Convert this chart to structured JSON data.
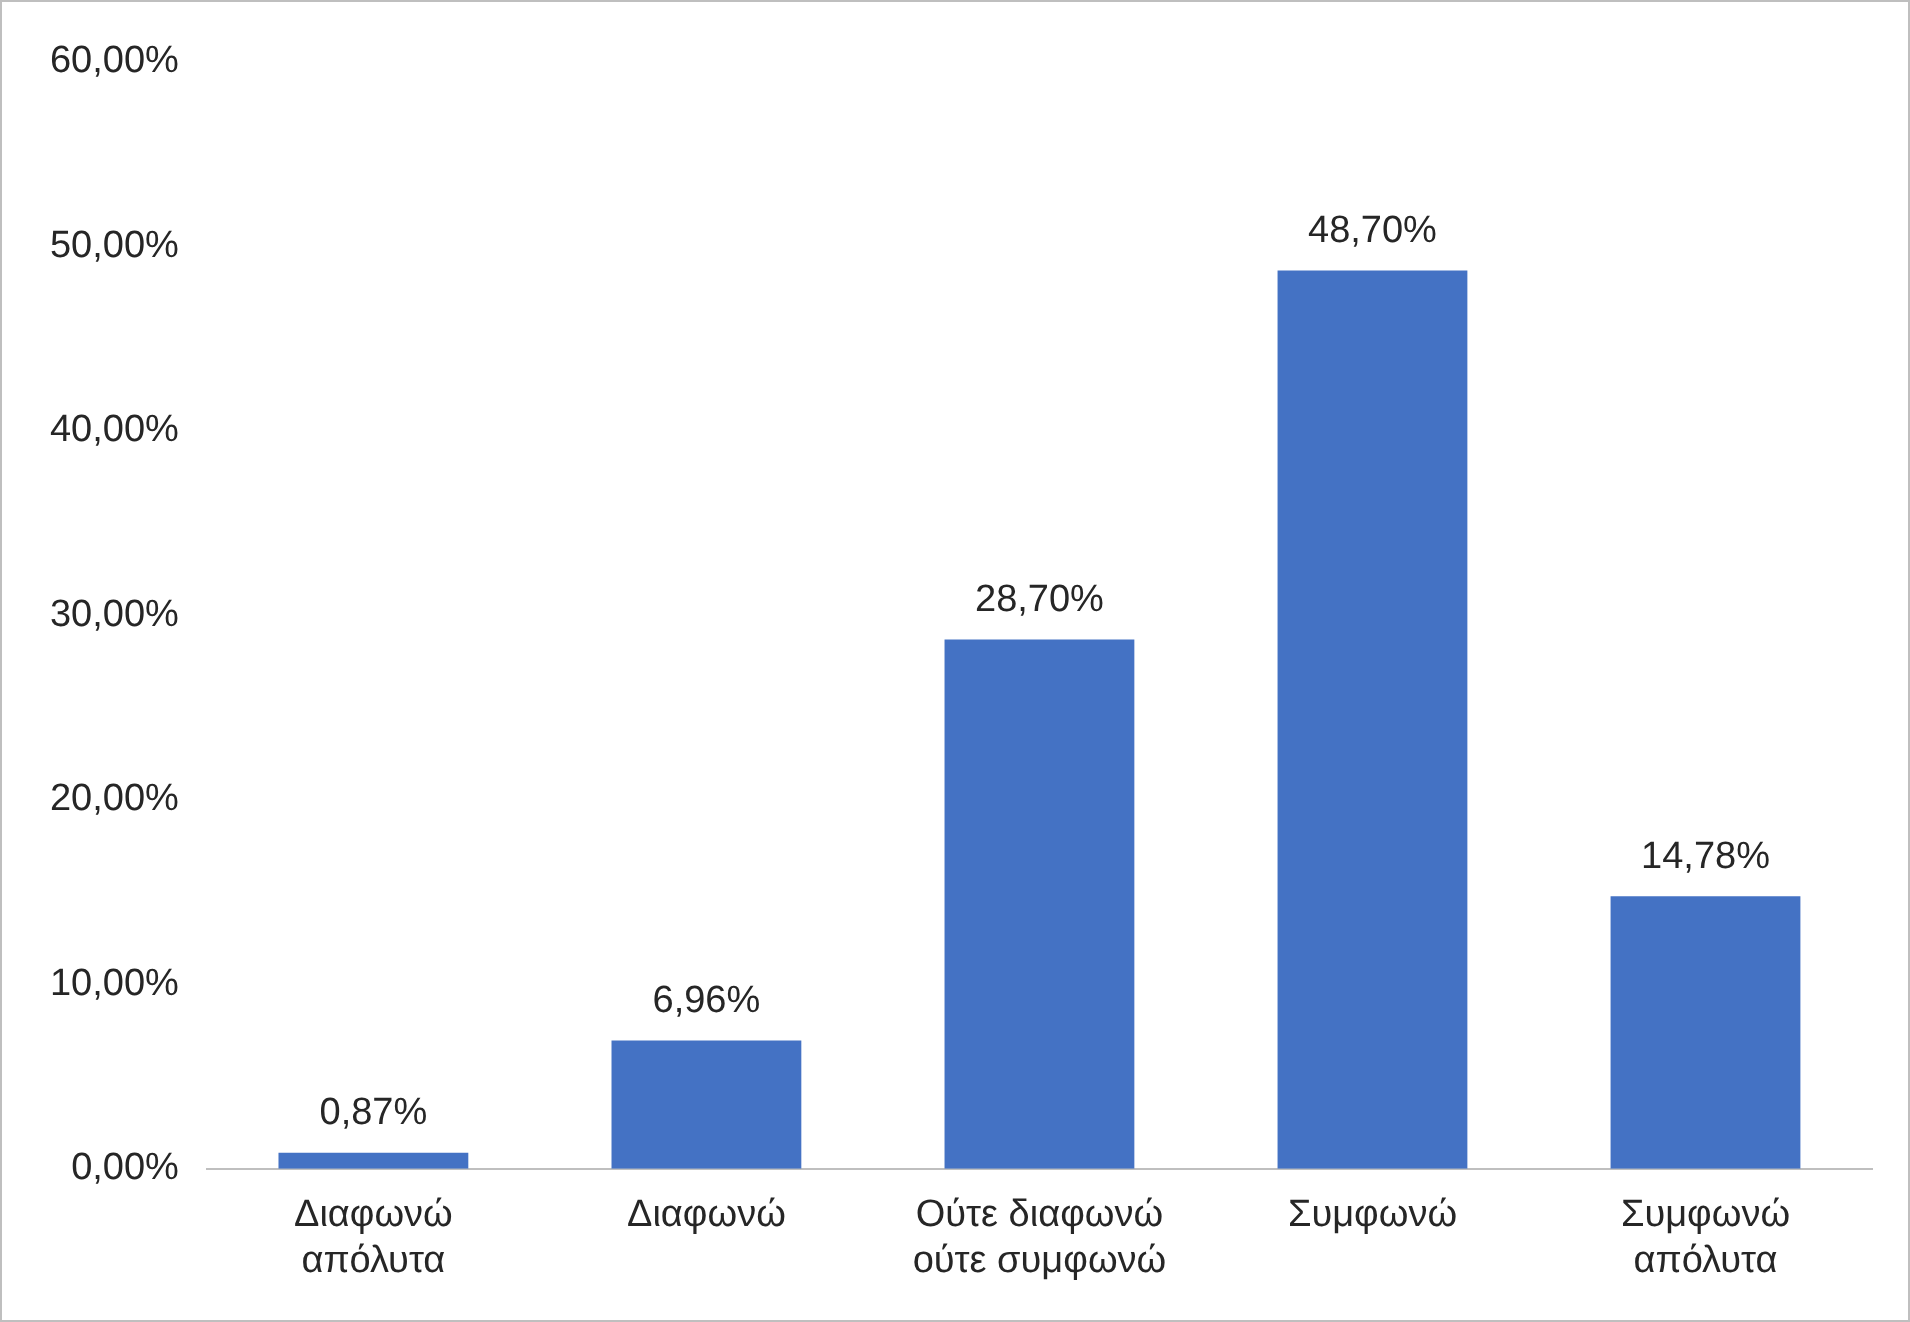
{
  "chart_data": {
    "type": "bar",
    "categories": [
      "Διαφωνώ απόλυτα",
      "Διαφωνώ",
      "Ούτε διαφωνώ ούτε συμφωνώ",
      "Συμφωνώ",
      "Συμφωνώ απόλυτα"
    ],
    "values": [
      0.87,
      6.96,
      28.7,
      48.7,
      14.78
    ],
    "value_labels": [
      "0,87%",
      "6,96%",
      "28,70%",
      "48,70%",
      "14,78%"
    ],
    "color": "#4472c4",
    "ylim": [
      0,
      60
    ],
    "yticks": [
      {
        "value": 0,
        "label": "0,00%"
      },
      {
        "value": 10,
        "label": "10,00%"
      },
      {
        "value": 20,
        "label": "20,00%"
      },
      {
        "value": 30,
        "label": "30,00%"
      },
      {
        "value": 40,
        "label": "40,00%"
      },
      {
        "value": 50,
        "label": "50,00%"
      },
      {
        "value": 60,
        "label": "60,00%"
      }
    ],
    "grid": false,
    "legend": false
  }
}
